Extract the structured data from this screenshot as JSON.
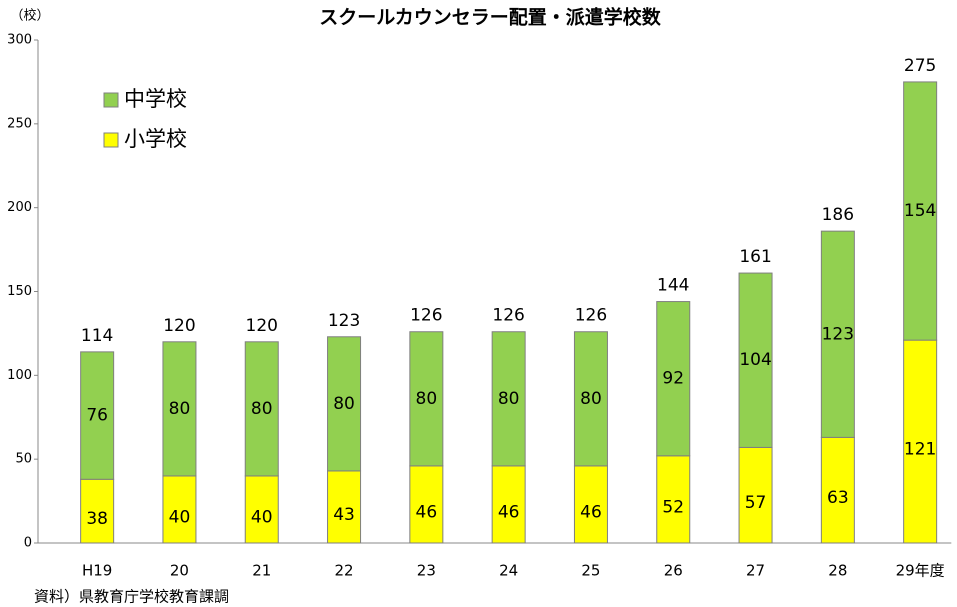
{
  "chart_data": {
    "type": "stacked-bar",
    "title": "スクールカウンセラー配置・派遣学校数",
    "y_unit": "（校）",
    "source": "資料）県教育庁学校教育課調",
    "categories": [
      "H19",
      "20",
      "21",
      "22",
      "23",
      "24",
      "25",
      "26",
      "27",
      "28",
      "29年度"
    ],
    "series": [
      {
        "name": "小学校",
        "color": "#ffff00",
        "values": [
          38,
          40,
          40,
          43,
          46,
          46,
          46,
          52,
          57,
          63,
          121
        ]
      },
      {
        "name": "中学校",
        "color": "#92d050",
        "values": [
          76,
          80,
          80,
          80,
          80,
          80,
          80,
          92,
          104,
          123,
          154
        ]
      }
    ],
    "total_labels": [
      114,
      120,
      120,
      123,
      126,
      126,
      126,
      144,
      161,
      186,
      275
    ],
    "ylim": [
      0,
      300
    ],
    "yticks": [
      0,
      50,
      100,
      150,
      200,
      250,
      300
    ],
    "grid": false,
    "legend": "top-left"
  }
}
